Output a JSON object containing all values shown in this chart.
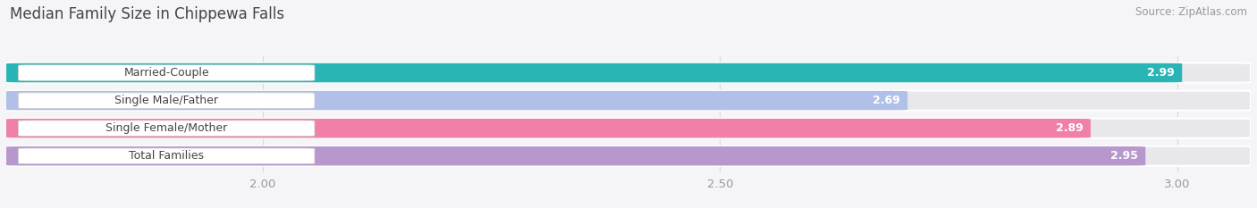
{
  "title": "Median Family Size in Chippewa Falls",
  "source": "Source: ZipAtlas.com",
  "categories": [
    "Married-Couple",
    "Single Male/Father",
    "Single Female/Mother",
    "Total Families"
  ],
  "values": [
    2.99,
    2.69,
    2.89,
    2.95
  ],
  "bar_colors": [
    "#29b5b5",
    "#b0c0e8",
    "#f080a8",
    "#b898cc"
  ],
  "track_color": "#e8e8ec",
  "xlim_min": 1.72,
  "xlim_max": 3.08,
  "data_min": 1.72,
  "data_max": 3.08,
  "xticks": [
    2.0,
    2.5,
    3.0
  ],
  "xtick_labels": [
    "2.00",
    "2.50",
    "3.00"
  ],
  "bar_height": 0.68,
  "title_fontsize": 12,
  "tick_fontsize": 9.5,
  "label_fontsize": 9,
  "value_fontsize": 9,
  "source_fontsize": 8.5,
  "bg_color": "#f5f5f7",
  "title_color": "#444444",
  "tick_color": "#999999",
  "source_color": "#999999",
  "grid_color": "#d8d8e0",
  "label_box_color": "#ffffff",
  "label_text_color": "#444444",
  "value_text_color": "#ffffff"
}
